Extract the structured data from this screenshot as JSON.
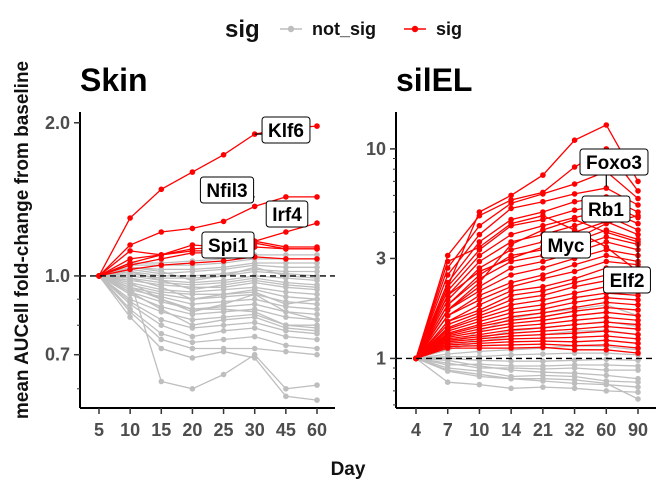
{
  "legend": {
    "title": "sig",
    "entries": [
      {
        "label": "not_sig",
        "color": "#bebebe"
      },
      {
        "label": "sig",
        "color": "#ff0000"
      }
    ]
  },
  "colors": {
    "not_sig": "#bebebe",
    "sig": "#ff0000",
    "label_connector": "#000000",
    "baseline": "#000000"
  },
  "axes": {
    "ylabel": "mean AUCell fold-change from baseline",
    "xlabel": "Day"
  },
  "chart_data": [
    {
      "type": "line",
      "title": "Skin",
      "scale_y": "log",
      "ylim": [
        0.55,
        2.1
      ],
      "yticks": [
        "0.7",
        "1.0",
        "2.0"
      ],
      "baseline": 1.0,
      "categories": [
        "5",
        "10",
        "15",
        "20",
        "25",
        "30",
        "45",
        "60"
      ],
      "sig_series": [
        {
          "values": [
            1,
            1.3,
            1.48,
            1.6,
            1.73,
            1.9,
            1.95,
            1.97
          ]
        },
        {
          "values": [
            1,
            1.15,
            1.22,
            1.24,
            1.28,
            1.37,
            1.43,
            1.43
          ]
        },
        {
          "values": [
            1,
            1.06,
            1.1,
            1.13,
            1.14,
            1.17,
            1.22,
            1.27
          ]
        },
        {
          "values": [
            1,
            1.05,
            1.08,
            1.11,
            1.11,
            1.16,
            1.13,
            1.13
          ]
        },
        {
          "values": [
            1,
            1.08,
            1.1,
            1.12,
            1.12,
            1.14,
            1.13,
            1.13
          ]
        },
        {
          "values": [
            1,
            1.03,
            1.05,
            1.06,
            1.07,
            1.09,
            1.08,
            1.08
          ]
        },
        {
          "values": [
            1,
            1.12,
            1.1,
            1.15,
            1.14,
            1.17,
            1.14,
            1.14
          ]
        }
      ],
      "nonsig_series": [
        {
          "values": [
            1,
            0.98,
            0.62,
            0.6,
            0.64,
            0.7,
            0.6,
            0.61
          ]
        },
        {
          "values": [
            1,
            0.83,
            0.72,
            0.69,
            0.71,
            0.69,
            0.58,
            0.57
          ]
        },
        {
          "values": [
            1,
            0.85,
            0.75,
            0.72,
            0.72,
            0.72,
            0.71,
            0.7
          ]
        },
        {
          "values": [
            1,
            0.86,
            0.77,
            0.74,
            0.75,
            0.76,
            0.73,
            0.72
          ]
        },
        {
          "values": [
            1,
            0.88,
            0.8,
            0.76,
            0.78,
            0.79,
            0.76,
            0.75
          ]
        },
        {
          "values": [
            1,
            0.89,
            0.82,
            0.79,
            0.8,
            0.81,
            0.78,
            0.77
          ]
        },
        {
          "values": [
            1,
            0.9,
            0.85,
            0.82,
            0.83,
            0.84,
            0.8,
            0.79
          ]
        },
        {
          "values": [
            1,
            0.92,
            0.87,
            0.84,
            0.85,
            0.86,
            0.83,
            0.82
          ]
        },
        {
          "values": [
            1,
            0.93,
            0.89,
            0.86,
            0.87,
            0.88,
            0.85,
            0.84
          ]
        },
        {
          "values": [
            1,
            0.94,
            0.91,
            0.88,
            0.89,
            0.9,
            0.87,
            0.86
          ]
        },
        {
          "values": [
            1,
            0.95,
            0.92,
            0.9,
            0.91,
            0.92,
            0.89,
            0.88
          ]
        },
        {
          "values": [
            1,
            0.96,
            0.93,
            0.92,
            0.92,
            0.94,
            0.91,
            0.9
          ]
        },
        {
          "values": [
            1,
            0.97,
            0.94,
            0.93,
            0.94,
            0.95,
            0.93,
            0.92
          ]
        },
        {
          "values": [
            1,
            0.98,
            0.96,
            0.95,
            0.95,
            0.97,
            0.95,
            0.94
          ]
        },
        {
          "values": [
            1,
            0.99,
            0.97,
            0.96,
            0.97,
            0.99,
            0.97,
            0.96
          ]
        },
        {
          "values": [
            1,
            1.0,
            0.98,
            0.97,
            0.98,
            1.0,
            0.99,
            0.98
          ]
        },
        {
          "values": [
            1,
            1.01,
            0.99,
            0.99,
            1.0,
            1.02,
            1.01,
            1.0
          ]
        },
        {
          "values": [
            1,
            1.02,
            1.0,
            1.0,
            1.01,
            1.03,
            1.02,
            1.02
          ]
        },
        {
          "values": [
            1,
            1.03,
            1.01,
            1.02,
            1.03,
            1.05,
            1.04,
            1.04
          ]
        },
        {
          "values": [
            1,
            1.04,
            1.03,
            1.03,
            1.04,
            1.06,
            1.06,
            1.06
          ]
        },
        {
          "values": [
            1,
            1.05,
            1.05,
            1.05,
            1.06,
            1.08,
            1.08,
            1.08
          ]
        },
        {
          "values": [
            1,
            1.06,
            1.06,
            1.07,
            1.08,
            1.1,
            1.1,
            1.1
          ]
        },
        {
          "values": [
            1,
            0.97,
            0.9,
            0.85,
            0.88,
            0.92,
            0.85,
            0.82
          ]
        },
        {
          "values": [
            1,
            0.95,
            0.9,
            0.86,
            0.86,
            0.85,
            0.8,
            0.8
          ]
        },
        {
          "values": [
            1,
            0.99,
            0.95,
            0.9,
            0.92,
            0.93,
            0.88,
            0.9
          ]
        },
        {
          "values": [
            1,
            1.02,
            0.98,
            0.94,
            0.96,
            0.98,
            0.96,
            0.95
          ]
        },
        {
          "values": [
            1,
            0.93,
            0.86,
            0.8,
            0.82,
            0.83,
            0.79,
            0.78
          ]
        },
        {
          "values": [
            1,
            1.04,
            1.02,
            0.98,
            1.0,
            1.04,
            1.0,
            0.99
          ]
        }
      ],
      "gene_labels": [
        {
          "text": "Klf6",
          "category": "30",
          "value": 1.9
        },
        {
          "text": "Nfil3",
          "category": "30",
          "value": 1.43
        },
        {
          "text": "Irf4",
          "category": "45",
          "value": 1.27
        },
        {
          "text": "Spi1",
          "category": "30",
          "value": 1.13
        }
      ]
    },
    {
      "type": "line",
      "title": "silEL",
      "scale_y": "log",
      "ylim": [
        0.58,
        15
      ],
      "yticks": [
        "1",
        "3",
        "10"
      ],
      "baseline": 1.0,
      "categories": [
        "4",
        "7",
        "10",
        "14",
        "21",
        "32",
        "60",
        "90"
      ],
      "sig_series": [
        {
          "values": [
            1,
            2.2,
            5.0,
            6.0,
            7.5,
            11.0,
            13.0,
            7.0
          ]
        },
        {
          "values": [
            1,
            3.1,
            4.8,
            5.7,
            6.2,
            8.2,
            10.0,
            6.3
          ]
        },
        {
          "values": [
            1,
            2.7,
            4.3,
            5.5,
            6.1,
            6.8,
            7.8,
            5.8
          ]
        },
        {
          "values": [
            1,
            2.5,
            3.9,
            5.2,
            5.6,
            6.1,
            6.5,
            5.4
          ]
        },
        {
          "values": [
            1,
            2.3,
            3.6,
            4.6,
            5.0,
            5.6,
            5.9,
            5.0
          ]
        },
        {
          "values": [
            1,
            2.2,
            3.3,
            4.3,
            4.6,
            5.1,
            5.5,
            4.7
          ]
        },
        {
          "values": [
            1,
            2.1,
            3.1,
            3.9,
            4.3,
            4.7,
            5.1,
            4.4
          ]
        },
        {
          "values": [
            1,
            2.0,
            2.9,
            3.6,
            3.9,
            4.3,
            4.8,
            4.1
          ]
        },
        {
          "values": [
            1,
            1.9,
            2.7,
            3.3,
            3.6,
            4.0,
            4.5,
            3.9
          ]
        },
        {
          "values": [
            1,
            1.8,
            2.5,
            3.1,
            3.3,
            3.6,
            4.1,
            3.7
          ]
        },
        {
          "values": [
            1,
            1.8,
            2.4,
            2.9,
            3.1,
            3.4,
            3.8,
            3.5
          ]
        },
        {
          "values": [
            1,
            1.7,
            2.2,
            2.7,
            2.9,
            3.2,
            3.6,
            3.3
          ]
        },
        {
          "values": [
            1,
            1.7,
            2.1,
            2.5,
            2.7,
            3.0,
            3.3,
            3.1
          ]
        },
        {
          "values": [
            1,
            1.6,
            2.0,
            2.3,
            2.5,
            2.8,
            3.1,
            2.9
          ]
        },
        {
          "values": [
            1,
            1.6,
            1.9,
            2.2,
            2.4,
            2.6,
            2.9,
            2.8
          ]
        },
        {
          "values": [
            1,
            1.5,
            1.8,
            2.1,
            2.2,
            2.4,
            2.7,
            2.6
          ]
        },
        {
          "values": [
            1,
            1.5,
            1.7,
            2.0,
            2.1,
            2.3,
            2.5,
            2.45
          ]
        },
        {
          "values": [
            1,
            1.45,
            1.65,
            1.9,
            2.0,
            2.2,
            2.35,
            2.3
          ]
        },
        {
          "values": [
            1,
            1.4,
            1.6,
            1.8,
            1.9,
            2.05,
            2.2,
            2.15
          ]
        },
        {
          "values": [
            1,
            1.38,
            1.55,
            1.72,
            1.8,
            1.95,
            2.05,
            2.0
          ]
        },
        {
          "values": [
            1,
            1.35,
            1.5,
            1.65,
            1.72,
            1.85,
            1.95,
            1.9
          ]
        },
        {
          "values": [
            1,
            1.32,
            1.45,
            1.58,
            1.65,
            1.75,
            1.85,
            1.8
          ]
        },
        {
          "values": [
            1,
            1.3,
            1.42,
            1.52,
            1.58,
            1.68,
            1.75,
            1.7
          ]
        },
        {
          "values": [
            1,
            1.28,
            1.38,
            1.47,
            1.52,
            1.6,
            1.66,
            1.6
          ]
        },
        {
          "values": [
            1,
            1.26,
            1.34,
            1.42,
            1.46,
            1.52,
            1.57,
            1.52
          ]
        },
        {
          "values": [
            1,
            1.24,
            1.3,
            1.37,
            1.4,
            1.45,
            1.49,
            1.45
          ]
        },
        {
          "values": [
            1,
            1.22,
            1.27,
            1.32,
            1.35,
            1.38,
            1.42,
            1.38
          ]
        },
        {
          "values": [
            1,
            1.2,
            1.24,
            1.28,
            1.3,
            1.32,
            1.35,
            1.3
          ]
        },
        {
          "values": [
            1,
            1.18,
            1.21,
            1.24,
            1.25,
            1.26,
            1.28,
            1.24
          ]
        },
        {
          "values": [
            1,
            1.16,
            1.18,
            1.2,
            1.21,
            1.2,
            1.22,
            1.18
          ]
        },
        {
          "values": [
            1,
            1.14,
            1.15,
            1.16,
            1.17,
            1.15,
            1.16,
            1.12
          ]
        },
        {
          "values": [
            1,
            1.12,
            1.12,
            1.12,
            1.13,
            1.1,
            1.1,
            1.06
          ]
        },
        {
          "values": [
            1,
            2.9,
            3.4,
            4.4,
            4.8,
            4.1,
            3.4,
            2.6
          ]
        },
        {
          "values": [
            1,
            2.0,
            2.6,
            3.0,
            3.4,
            3.7,
            4.4,
            4.8
          ]
        },
        {
          "values": [
            1,
            1.7,
            2.3,
            3.5,
            4.1,
            4.6,
            4.0,
            3.6
          ]
        }
      ],
      "nonsig_series": [
        {
          "values": [
            1,
            0.98,
            0.92,
            0.88,
            0.86,
            0.85,
            0.83,
            0.8
          ]
        },
        {
          "values": [
            1,
            0.95,
            0.9,
            0.9,
            0.89,
            0.9,
            0.88,
            0.88
          ]
        },
        {
          "values": [
            1,
            0.87,
            0.82,
            0.8,
            0.78,
            0.76,
            0.75,
            0.73
          ]
        },
        {
          "values": [
            1,
            0.77,
            0.75,
            0.72,
            0.73,
            0.72,
            0.7,
            0.69
          ]
        },
        {
          "values": [
            1,
            0.9,
            0.87,
            0.82,
            0.83,
            0.82,
            0.78,
            0.77
          ]
        },
        {
          "values": [
            1,
            0.93,
            0.94,
            0.92,
            0.92,
            0.93,
            0.93,
            0.92
          ]
        },
        {
          "values": [
            1,
            0.88,
            0.84,
            0.8,
            0.8,
            0.79,
            0.76,
            0.64
          ]
        },
        {
          "values": [
            1,
            1.05,
            1.08,
            1.1,
            1.12,
            1.15,
            1.14,
            1.1
          ]
        },
        {
          "values": [
            1,
            1.02,
            1.02,
            1.04,
            1.05,
            1.06,
            1.06,
            1.04
          ]
        },
        {
          "values": [
            1,
            1.1,
            1.2,
            1.28,
            1.3,
            1.35,
            1.36,
            1.3
          ]
        },
        {
          "values": [
            1,
            1.12,
            1.25,
            1.35,
            1.4,
            1.45,
            1.5,
            1.42
          ]
        },
        {
          "values": [
            1,
            1.15,
            1.35,
            1.55,
            1.65,
            1.72,
            1.8,
            1.6
          ]
        },
        {
          "values": [
            1,
            1.0,
            0.98,
            0.97,
            0.97,
            0.98,
            0.99,
            0.98
          ]
        }
      ],
      "gene_labels": [
        {
          "text": "Foxo3",
          "category": "60",
          "value": 6.6
        },
        {
          "text": "Rb1",
          "category": "60",
          "value": 4.6
        },
        {
          "text": "Myc",
          "category": "21",
          "value": 3.0
        },
        {
          "text": "Elf2",
          "category": "90",
          "value": 3.6
        }
      ]
    }
  ]
}
